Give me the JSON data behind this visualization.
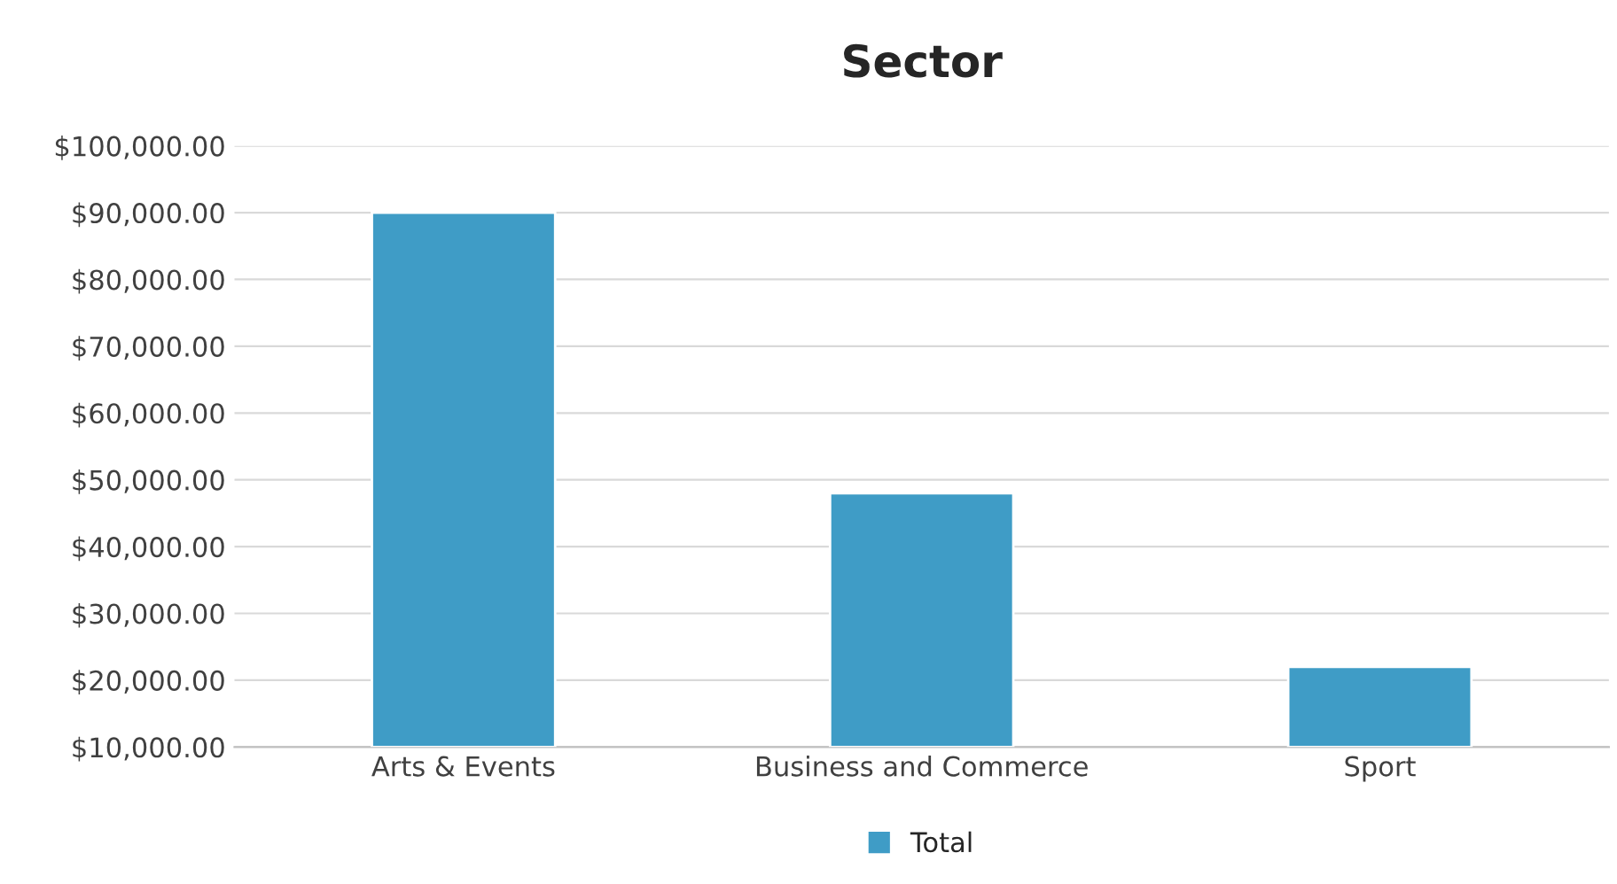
{
  "chart_data": {
    "type": "bar",
    "title": "Sector",
    "categories": [
      "Arts & Events",
      "Business and Commerce",
      "Sport"
    ],
    "series": [
      {
        "name": "Total",
        "color": "#3f9cc6",
        "values": [
          90000,
          48000,
          22000
        ]
      }
    ],
    "ylim": [
      10000,
      100000
    ],
    "yticks": [
      {
        "value": 10000,
        "label": "$10,000.00"
      },
      {
        "value": 20000,
        "label": "$20,000.00"
      },
      {
        "value": 30000,
        "label": "$30,000.00"
      },
      {
        "value": 40000,
        "label": "$40,000.00"
      },
      {
        "value": 50000,
        "label": "$50,000.00"
      },
      {
        "value": 60000,
        "label": "$60,000.00"
      },
      {
        "value": 70000,
        "label": "$70,000.00"
      },
      {
        "value": 80000,
        "label": "$80,000.00"
      },
      {
        "value": 90000,
        "label": "$90,000.00"
      },
      {
        "value": 100000,
        "label": "$100,000.00"
      }
    ],
    "grid": "y",
    "legend": "bottom"
  }
}
